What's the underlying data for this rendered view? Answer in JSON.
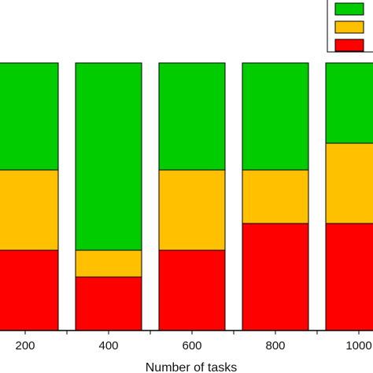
{
  "chart_data": {
    "type": "bar",
    "stacked": true,
    "normalized": true,
    "xlabel": "Number of tasks",
    "ylabel": "",
    "title": "",
    "categories": [
      "200",
      "400",
      "600",
      "800",
      "1000"
    ],
    "ylim": [
      0,
      1
    ],
    "series": [
      {
        "color": "#ff0000",
        "values": [
          0.3,
          0.2,
          0.3,
          0.4,
          0.4
        ]
      },
      {
        "color": "#ffc000",
        "values": [
          0.3,
          0.1,
          0.3,
          0.2,
          0.3
        ]
      },
      {
        "color": "#00cc00",
        "values": [
          0.4,
          0.7,
          0.4,
          0.4,
          0.3
        ]
      }
    ],
    "legend": {
      "placement": "top-right",
      "entries": [
        "",
        "",
        ""
      ]
    },
    "grid": false
  }
}
